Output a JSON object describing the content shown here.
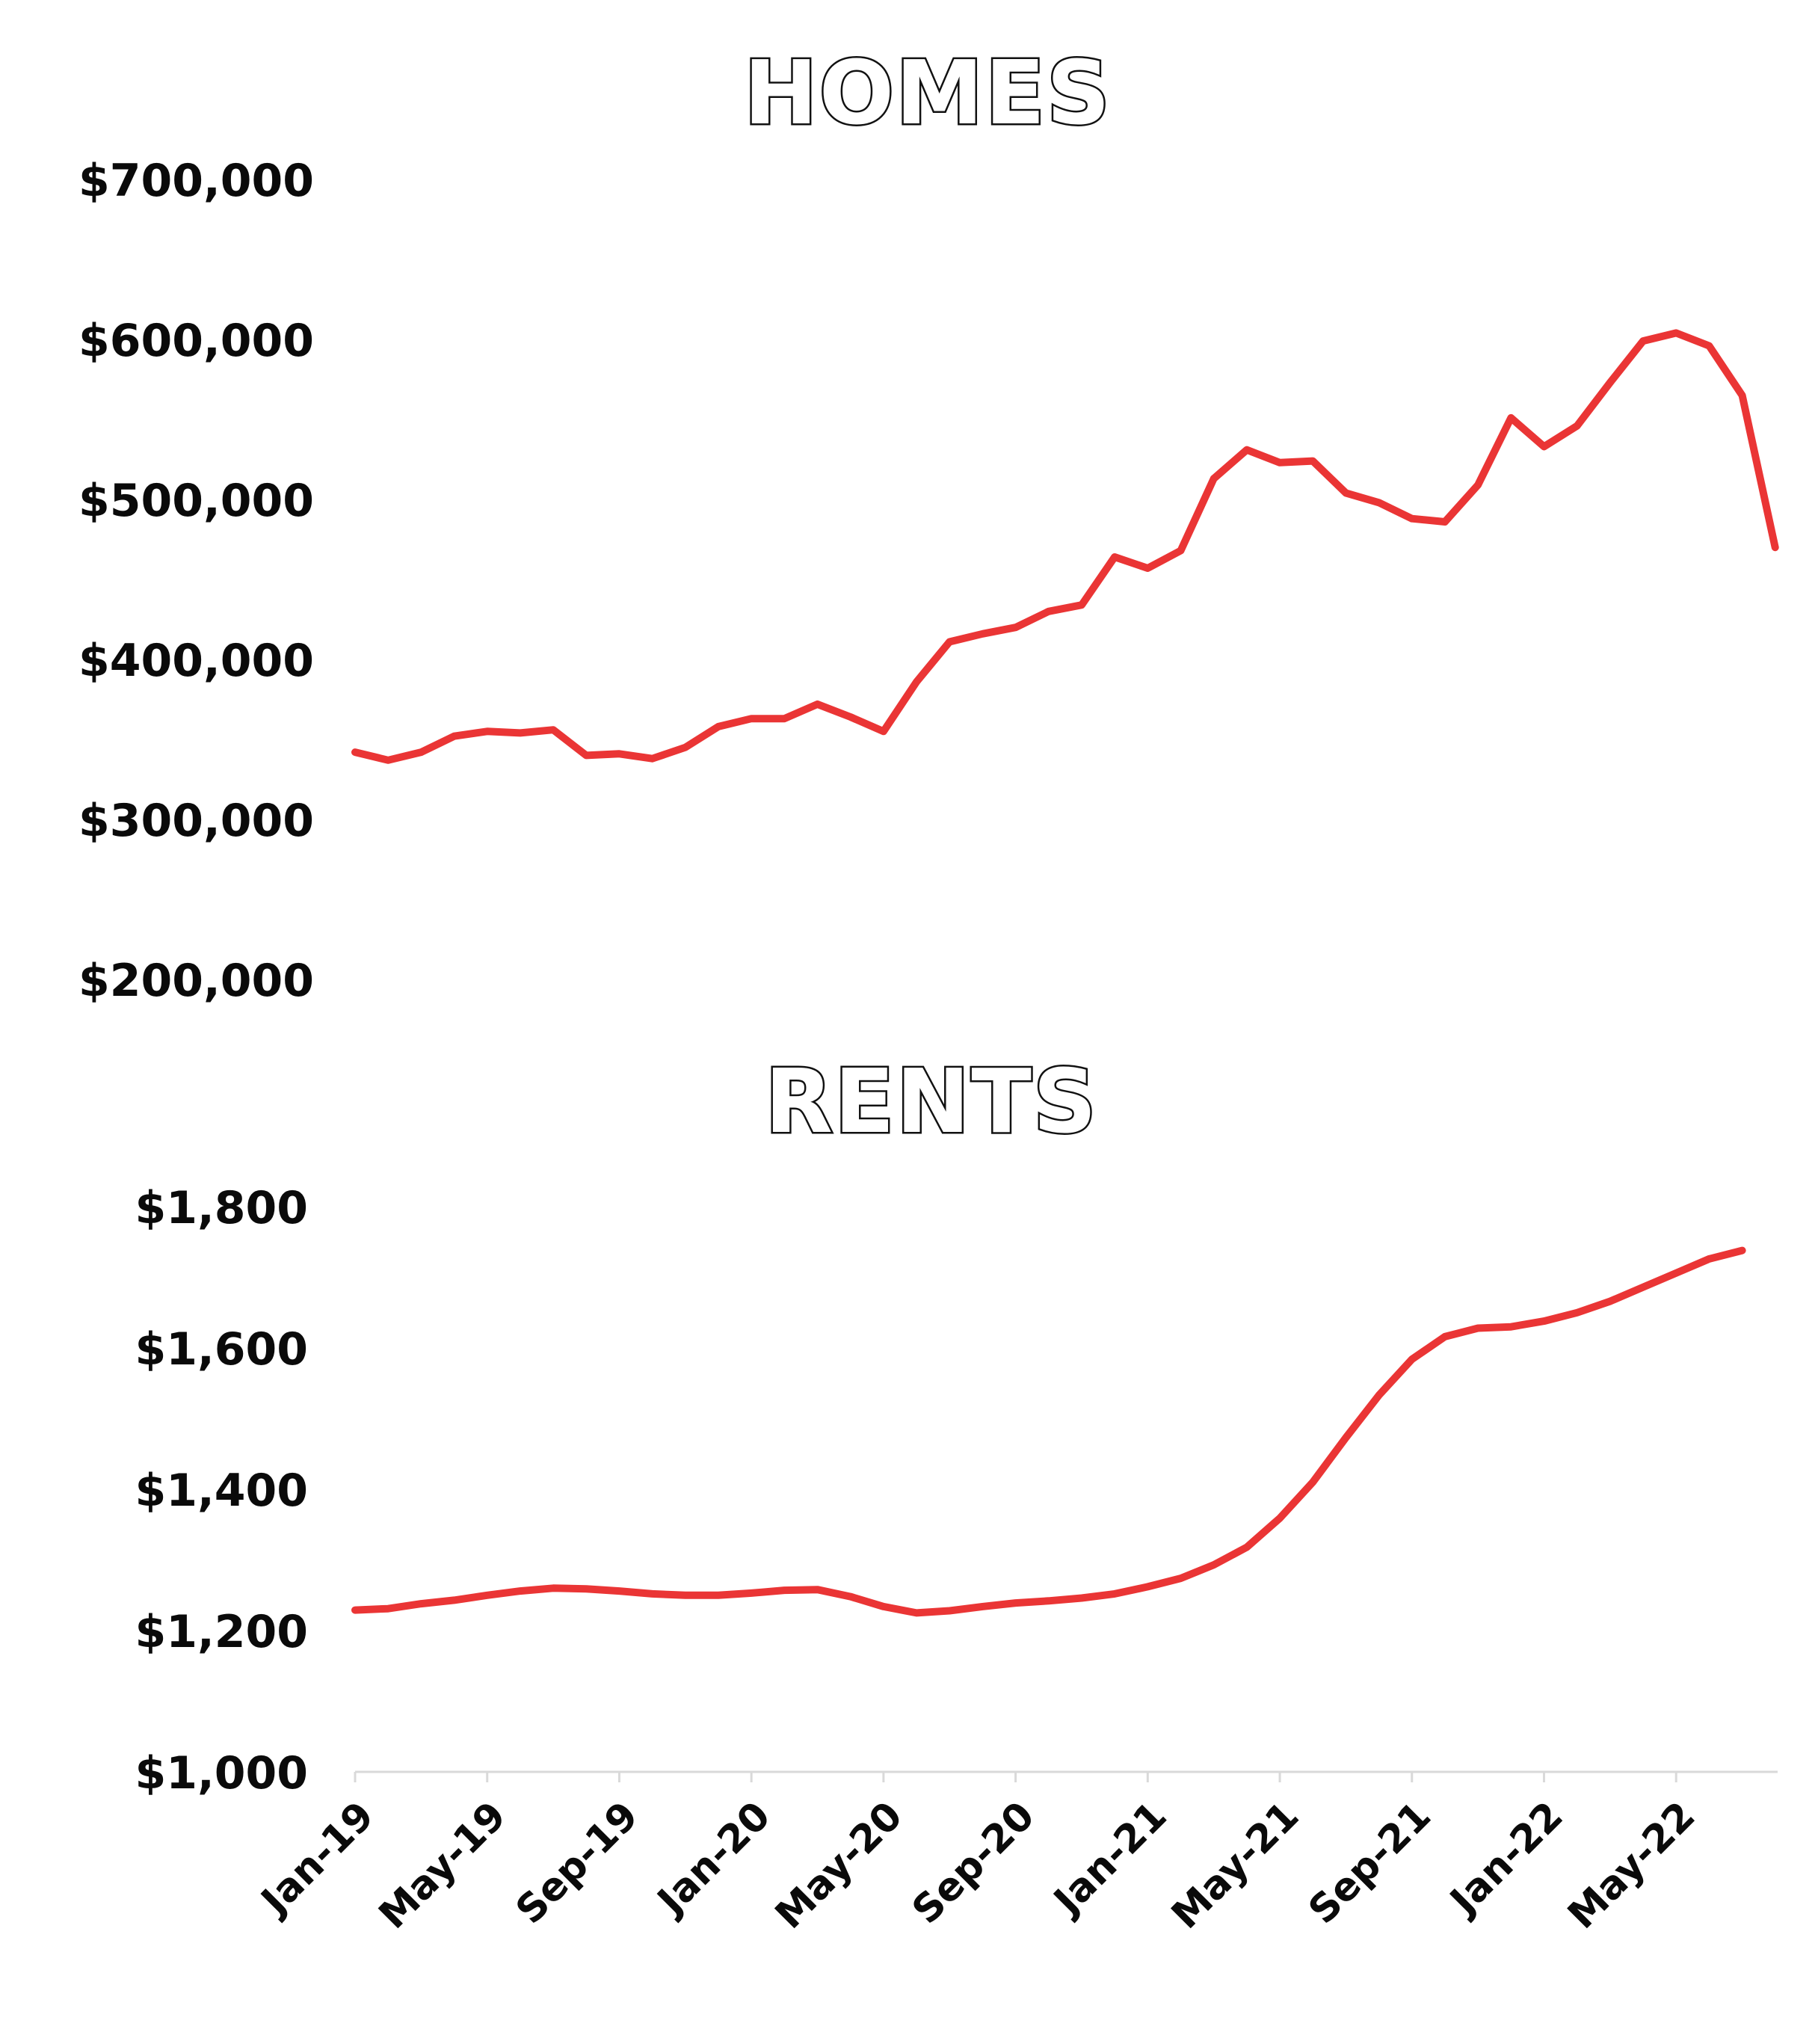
{
  "chart_data": [
    {
      "type": "line",
      "title": "HOMES",
      "xlabel": "",
      "ylabel": "",
      "ylim": [
        200000,
        700000
      ],
      "y_ticks": [
        "$200,000",
        "$300,000",
        "$400,000",
        "$500,000",
        "$600,000",
        "$700,000"
      ],
      "x": [
        "Jan-19",
        "Feb-19",
        "Mar-19",
        "Apr-19",
        "May-19",
        "Jun-19",
        "Jul-19",
        "Aug-19",
        "Sep-19",
        "Oct-19",
        "Nov-19",
        "Dec-19",
        "Jan-20",
        "Feb-20",
        "Mar-20",
        "Apr-20",
        "May-20",
        "Jun-20",
        "Jul-20",
        "Aug-20",
        "Sep-20",
        "Oct-20",
        "Nov-20",
        "Dec-20",
        "Jan-21",
        "Feb-21",
        "Mar-21",
        "Apr-21",
        "May-21",
        "Jun-21",
        "Jul-21",
        "Aug-21",
        "Sep-21",
        "Oct-21",
        "Nov-21",
        "Dec-21",
        "Jan-22",
        "Feb-22",
        "Mar-22",
        "Apr-22",
        "May-22",
        "Jun-22",
        "Jul-22",
        "Aug-22"
      ],
      "series": [
        {
          "values": [
            342000,
            337000,
            342000,
            352000,
            355000,
            354000,
            356000,
            340000,
            341000,
            338000,
            345000,
            358000,
            363000,
            363000,
            372000,
            364000,
            355000,
            386000,
            411000,
            416000,
            420000,
            430000,
            434000,
            464000,
            457000,
            468000,
            513000,
            531000,
            523000,
            524000,
            504000,
            498000,
            488000,
            486000,
            509000,
            551000,
            533000,
            546000,
            573000,
            599000,
            604000,
            596000,
            565000,
            470000
          ],
          "color": "#ea3535"
        }
      ],
      "grid": false,
      "legend": "none"
    },
    {
      "type": "line",
      "title": "RENTS",
      "xlabel": "",
      "ylabel": "",
      "ylim": [
        1000,
        1800
      ],
      "y_ticks": [
        "$1,000",
        "$1,200",
        "$1,400",
        "$1,600",
        "$1,800"
      ],
      "x_ticks": [
        "Jan-19",
        "May-19",
        "Sep-19",
        "Jan-20",
        "May-20",
        "Sep-20",
        "Jan-21",
        "May-21",
        "Sep-21",
        "Jan-22",
        "May-22"
      ],
      "x": [
        "Jan-19",
        "Feb-19",
        "Mar-19",
        "Apr-19",
        "May-19",
        "Jun-19",
        "Jul-19",
        "Aug-19",
        "Sep-19",
        "Oct-19",
        "Nov-19",
        "Dec-19",
        "Jan-20",
        "Feb-20",
        "Mar-20",
        "Apr-20",
        "May-20",
        "Jun-20",
        "Jul-20",
        "Aug-20",
        "Sep-20",
        "Oct-20",
        "Nov-20",
        "Dec-20",
        "Jan-21",
        "Feb-21",
        "Mar-21",
        "Apr-21",
        "May-21",
        "Jun-21",
        "Jul-21",
        "Aug-21",
        "Sep-21",
        "Oct-21",
        "Nov-21",
        "Dec-21",
        "Jan-22",
        "Feb-22",
        "Mar-22",
        "Apr-22",
        "May-22",
        "Jun-22",
        "Jul-22"
      ],
      "series": [
        {
          "values": [
            1229,
            1231,
            1238,
            1243,
            1250,
            1256,
            1260,
            1259,
            1256,
            1252,
            1250,
            1250,
            1253,
            1257,
            1258,
            1248,
            1234,
            1225,
            1228,
            1234,
            1239,
            1242,
            1246,
            1252,
            1262,
            1274,
            1293,
            1318,
            1359,
            1410,
            1473,
            1533,
            1584,
            1616,
            1628,
            1630,
            1638,
            1650,
            1666,
            1686,
            1706,
            1726,
            1738
          ],
          "color": "#ea3535"
        }
      ],
      "grid": false,
      "legend": "none"
    }
  ]
}
